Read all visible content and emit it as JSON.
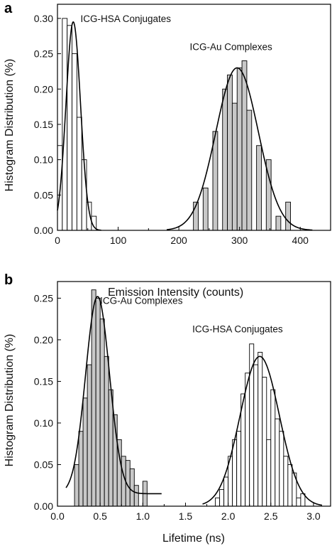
{
  "chart_data": [
    {
      "type": "bar",
      "panel_label": "a",
      "ylabel": "Histogram Distribution (%)",
      "xlabel": "",
      "xlim": [
        0,
        450
      ],
      "ylim": [
        0,
        0.32
      ],
      "xticks": [
        "0",
        "100",
        "200",
        "300",
        "400"
      ],
      "yticks": [
        "0.00",
        "0.05",
        "0.10",
        "0.15",
        "0.20",
        "0.25",
        "0.30"
      ],
      "bin_width": 8,
      "series": [
        {
          "name": "ICG-HSA Conjugates",
          "fill": "#ffffff",
          "bins": [
            {
              "x": 4,
              "y": 0.12
            },
            {
              "x": 12,
              "y": 0.3
            },
            {
              "x": 20,
              "y": 0.29
            },
            {
              "x": 28,
              "y": 0.25
            },
            {
              "x": 36,
              "y": 0.16
            },
            {
              "x": 44,
              "y": 0.1
            },
            {
              "x": 52,
              "y": 0.04
            },
            {
              "x": 60,
              "y": 0.02
            }
          ],
          "fit": {
            "mu": 26,
            "sigma": 12,
            "amp": 0.295,
            "xrange": [
              0,
              72
            ]
          }
        },
        {
          "name": "ICG-Au Complexes",
          "fill": "#c8c8c8",
          "bins": [
            {
              "x": 228,
              "y": 0.04
            },
            {
              "x": 244,
              "y": 0.06
            },
            {
              "x": 260,
              "y": 0.14
            },
            {
              "x": 276,
              "y": 0.2
            },
            {
              "x": 284,
              "y": 0.22
            },
            {
              "x": 292,
              "y": 0.18
            },
            {
              "x": 300,
              "y": 0.23
            },
            {
              "x": 308,
              "y": 0.24
            },
            {
              "x": 316,
              "y": 0.17
            },
            {
              "x": 332,
              "y": 0.12
            },
            {
              "x": 348,
              "y": 0.1
            },
            {
              "x": 364,
              "y": 0.02
            },
            {
              "x": 380,
              "y": 0.04
            }
          ],
          "fit": {
            "mu": 296,
            "sigma": 35,
            "amp": 0.23,
            "xrange": [
              180,
              420
            ]
          }
        }
      ],
      "annotations": [
        {
          "text": "ICG-HSA Conjugates",
          "x": 38,
          "y": 0.295
        },
        {
          "text": "ICG-Au Complexes",
          "x": 218,
          "y": 0.255
        }
      ]
    },
    {
      "type": "bar",
      "panel_label": "b",
      "ylabel": "Histogram Distribution (%)",
      "xlabel": "Lifetime (ns)",
      "title": "Emission Intensity (counts)",
      "xlim": [
        0,
        3.2
      ],
      "ylim": [
        0,
        0.27
      ],
      "xticks": [
        "0.0",
        "0.5",
        "1.0",
        "1.5",
        "2.0",
        "2.5",
        "3.0"
      ],
      "yticks": [
        "0.00",
        "0.05",
        "0.10",
        "0.15",
        "0.20",
        "0.25"
      ],
      "bin_width": 0.05,
      "series": [
        {
          "name": "ICG-Au Complexes",
          "fill": "#c8c8c8",
          "bins": [
            {
              "x": 0.225,
              "y": 0.05
            },
            {
              "x": 0.275,
              "y": 0.09
            },
            {
              "x": 0.325,
              "y": 0.13
            },
            {
              "x": 0.375,
              "y": 0.17
            },
            {
              "x": 0.425,
              "y": 0.26
            },
            {
              "x": 0.475,
              "y": 0.25
            },
            {
              "x": 0.525,
              "y": 0.225
            },
            {
              "x": 0.575,
              "y": 0.18
            },
            {
              "x": 0.625,
              "y": 0.14
            },
            {
              "x": 0.675,
              "y": 0.11
            },
            {
              "x": 0.725,
              "y": 0.08
            },
            {
              "x": 0.775,
              "y": 0.06
            },
            {
              "x": 0.825,
              "y": 0.055
            },
            {
              "x": 0.875,
              "y": 0.045
            },
            {
              "x": 0.925,
              "y": 0.025
            },
            {
              "x": 1.025,
              "y": 0.03
            }
          ],
          "fit": {
            "mu": 0.47,
            "sigma": 0.14,
            "amp": 0.237,
            "base": 0.015,
            "xrange": [
              0.1,
              1.22
            ]
          }
        },
        {
          "name": "ICG-HSA Conjugates",
          "fill": "#ffffff",
          "bins": [
            {
              "x": 1.875,
              "y": 0.01
            },
            {
              "x": 1.925,
              "y": 0.02
            },
            {
              "x": 1.975,
              "y": 0.035
            },
            {
              "x": 2.025,
              "y": 0.06
            },
            {
              "x": 2.075,
              "y": 0.08
            },
            {
              "x": 2.125,
              "y": 0.09
            },
            {
              "x": 2.175,
              "y": 0.135
            },
            {
              "x": 2.225,
              "y": 0.16
            },
            {
              "x": 2.275,
              "y": 0.195
            },
            {
              "x": 2.325,
              "y": 0.17
            },
            {
              "x": 2.375,
              "y": 0.185
            },
            {
              "x": 2.425,
              "y": 0.155
            },
            {
              "x": 2.475,
              "y": 0.08
            },
            {
              "x": 2.525,
              "y": 0.14
            },
            {
              "x": 2.575,
              "y": 0.105
            },
            {
              "x": 2.625,
              "y": 0.09
            },
            {
              "x": 2.675,
              "y": 0.06
            },
            {
              "x": 2.725,
              "y": 0.05
            },
            {
              "x": 2.775,
              "y": 0.04
            },
            {
              "x": 2.825,
              "y": 0.01
            },
            {
              "x": 2.875,
              "y": 0.015
            }
          ],
          "fit": {
            "mu": 2.37,
            "sigma": 0.23,
            "amp": 0.18,
            "base": 0,
            "xrange": [
              1.7,
              3.1
            ]
          }
        }
      ],
      "annotations": [
        {
          "text": "ICG-Au Complexes",
          "x": 0.5,
          "y": 0.243
        },
        {
          "text": "ICG-HSA Conjugates",
          "x": 1.58,
          "y": 0.209
        }
      ]
    }
  ]
}
